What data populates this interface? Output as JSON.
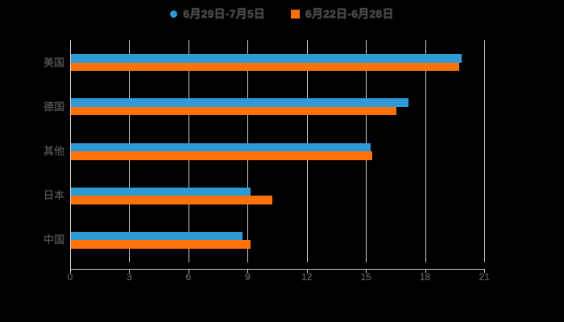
{
  "chart_data": {
    "type": "bar",
    "orientation": "horizontal",
    "categories": [
      "美国",
      "德国",
      "其他",
      "日本",
      "中国"
    ],
    "series": [
      {
        "name": "6月29日-7月5日",
        "marker": "circle",
        "color": "#2E9BD6",
        "values": [
          19.8,
          17.1,
          15.2,
          9.1,
          8.7
        ]
      },
      {
        "name": "6月22日-6月28日",
        "marker": "square",
        "color": "#FF7109",
        "values": [
          19.7,
          16.5,
          15.3,
          10.2,
          9.1
        ]
      }
    ],
    "xlim": [
      0,
      21
    ],
    "x_ticks": [
      0,
      3,
      6,
      9,
      12,
      15,
      18,
      21
    ],
    "grid": true,
    "legend_position": "top-center"
  },
  "colors": {
    "background": "#000000",
    "gridline": "#cfcfcf",
    "axis": "#c9c9c9",
    "tick_label": "#595959",
    "category_label": "#525252",
    "legend_text": "#454545"
  }
}
